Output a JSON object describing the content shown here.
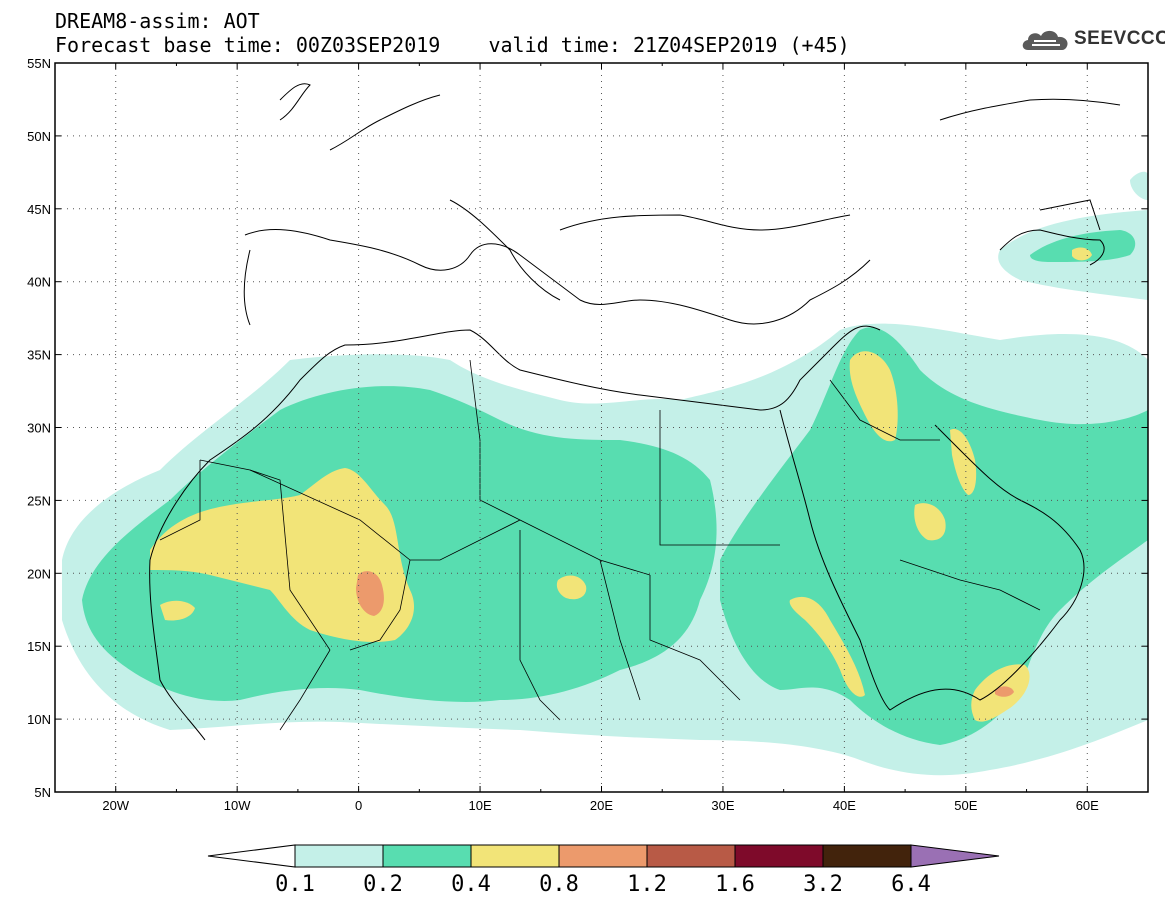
{
  "header": {
    "line1": "DREAM8-assim: AOT",
    "line2": "Forecast base time: 00Z03SEP2019    valid time: 21Z04SEP2019 (+45)"
  },
  "brand": {
    "name": "SEEVCCC",
    "icon": "cloud-logo-icon"
  },
  "map": {
    "lon_range": [
      -25,
      65
    ],
    "lat_range": [
      5,
      55
    ],
    "lat_ticks": [
      "5N",
      "10N",
      "15N",
      "20N",
      "25N",
      "30N",
      "35N",
      "40N",
      "45N",
      "50N",
      "55N"
    ],
    "lon_ticks": [
      "20W",
      "10W",
      "0",
      "10E",
      "20E",
      "30E",
      "40E",
      "50E",
      "60E"
    ],
    "grid": "dotted"
  },
  "colorbar": {
    "labels": [
      "0.1",
      "0.2",
      "0.4",
      "0.8",
      "1.2",
      "1.6",
      "3.2",
      "6.4"
    ],
    "colors": [
      "#c4f0e8",
      "#58ddb0",
      "#f2e478",
      "#ec9a6c",
      "#b85a46",
      "#7e0a2a",
      "#42230c",
      "#9a70b4"
    ]
  }
}
